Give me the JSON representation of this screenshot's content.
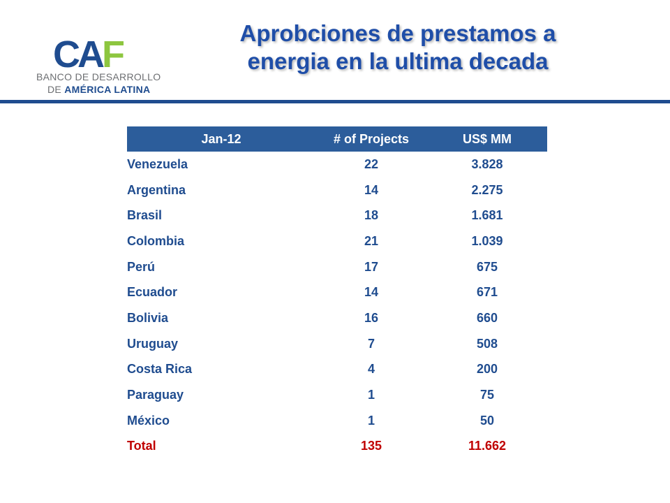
{
  "logo": {
    "mark": "CAF",
    "line1": "BANCO DE DESARROLLO",
    "line2_prefix": "DE ",
    "line2_bold": "AMÉRICA LATINA"
  },
  "title_line1": "Aprobciones  de prestamos a",
  "title_line2": "energia en la ultima decada",
  "table": {
    "headers": [
      "Jan-12",
      "# of Projects",
      "US$ MM"
    ],
    "rows": [
      [
        "Venezuela",
        "22",
        "3.828"
      ],
      [
        "Argentina",
        "14",
        "2.275"
      ],
      [
        "Brasil",
        "18",
        "1.681"
      ],
      [
        "Colombia",
        "21",
        "1.039"
      ],
      [
        "Perú",
        "17",
        "675"
      ],
      [
        "Ecuador",
        "14",
        "671"
      ],
      [
        "Bolivia",
        "16",
        "660"
      ],
      [
        "Uruguay",
        "7",
        "508"
      ],
      [
        "Costa Rica",
        "4",
        "200"
      ],
      [
        "Paraguay",
        "1",
        "75"
      ],
      [
        "México",
        "1",
        "50"
      ]
    ],
    "total": [
      "Total",
      "135",
      "11.662"
    ]
  },
  "colors": {
    "brand_blue": "#1f4c8f",
    "header_blue": "#2c5d9b",
    "logo_green": "#8dc63f",
    "total_red": "#c00000"
  }
}
